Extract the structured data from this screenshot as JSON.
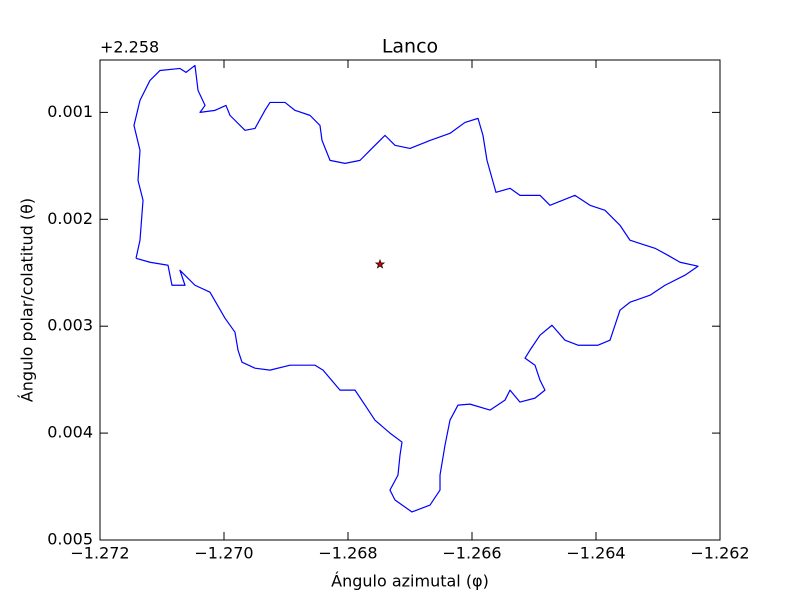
{
  "chart_data": {
    "type": "line",
    "title": "Lanco",
    "xlabel": "Ángulo azimutal (φ)",
    "ylabel": "Ángulo polar/colatitud (θ)",
    "y_offset": "+2.258",
    "xlim": [
      -1.272,
      -1.262
    ],
    "xticks": [
      {
        "value": -1.272,
        "label": "−1.272"
      },
      {
        "value": -1.27,
        "label": "−1.270"
      },
      {
        "value": -1.268,
        "label": "−1.268"
      },
      {
        "value": -1.266,
        "label": "−1.266"
      },
      {
        "value": -1.264,
        "label": "−1.264"
      },
      {
        "value": -1.262,
        "label": "−1.262"
      }
    ],
    "ylim": [
      0.005,
      0.00051
    ],
    "yticks": [
      0.001,
      0.002,
      0.003,
      0.004,
      0.005
    ],
    "series": [
      {
        "color": "#0000ff",
        "x": [
          -1.271419,
          -1.271355,
          -1.271306,
          -1.271387,
          -1.271355,
          -1.271452,
          -1.271355,
          -1.271194,
          -1.271032,
          -1.27071,
          -1.270613,
          -1.270468,
          -1.270419,
          -1.270306,
          -1.270387,
          -1.270145,
          -1.269968,
          -1.269903,
          -1.269661,
          -1.2695,
          -1.269339,
          -1.269258,
          -1.269016,
          -1.268855,
          -1.268613,
          -1.268452,
          -1.268419,
          -1.26829,
          -1.268048,
          -1.267806,
          -1.267645,
          -1.267403,
          -1.267242,
          -1.267,
          -1.266677,
          -1.266355,
          -1.266113,
          -1.265903,
          -1.265823,
          -1.265758,
          -1.265613,
          -1.265387,
          -1.265226,
          -1.264903,
          -1.264742,
          -1.264339,
          -1.264097,
          -1.263855,
          -1.263613,
          -1.263452,
          -1.263048,
          -1.262839,
          -1.262645,
          -1.262355,
          -1.262565,
          -1.262887,
          -1.263129,
          -1.263452,
          -1.263613,
          -1.263774,
          -1.263968,
          -1.26429,
          -1.2645,
          -1.26471,
          -1.264903,
          -1.265065,
          -1.265145,
          -1.264984,
          -1.264903,
          -1.264823,
          -1.264984,
          -1.265226,
          -1.265387,
          -1.265468,
          -1.26571,
          -1.266032,
          -1.266226,
          -1.266355,
          -1.266435,
          -1.266516,
          -1.266516,
          -1.266677,
          -1.266968,
          -1.267242,
          -1.267323,
          -1.267194,
          -1.267161,
          -1.267129,
          -1.267323,
          -1.267565,
          -1.267726,
          -1.267887,
          -1.268129,
          -1.268403,
          -1.268532,
          -1.268935,
          -1.269258,
          -1.2695,
          -1.26971,
          -1.269774,
          -1.269823,
          -1.269984,
          -1.270226,
          -1.270468,
          -1.27071,
          -1.270629,
          -1.270839,
          -1.270903,
          -1.271194,
          -1.271419
        ],
        "values": [
          0.002365,
          0.002196,
          0.001822,
          0.001636,
          0.001355,
          0.001122,
          0.000888,
          0.000701,
          0.000608,
          0.000589,
          0.000626,
          0.000561,
          0.000794,
          0.000935,
          0.001,
          0.000981,
          0.000935,
          0.001028,
          0.001168,
          0.00115,
          0.000981,
          0.000907,
          0.000907,
          0.000981,
          0.001028,
          0.001122,
          0.001262,
          0.001449,
          0.001477,
          0.001449,
          0.001355,
          0.001215,
          0.001308,
          0.001337,
          0.001262,
          0.001196,
          0.001094,
          0.001056,
          0.001215,
          0.001449,
          0.001748,
          0.00171,
          0.001776,
          0.001776,
          0.001869,
          0.001776,
          0.001869,
          0.001916,
          0.002056,
          0.002196,
          0.002271,
          0.002337,
          0.002402,
          0.002439,
          0.002523,
          0.002617,
          0.00271,
          0.002776,
          0.00285,
          0.003131,
          0.003178,
          0.003178,
          0.003131,
          0.002991,
          0.003084,
          0.003224,
          0.003299,
          0.003365,
          0.003505,
          0.003598,
          0.003673,
          0.00371,
          0.003598,
          0.003692,
          0.003785,
          0.003729,
          0.003738,
          0.003879,
          0.004112,
          0.004393,
          0.004533,
          0.004673,
          0.004738,
          0.004626,
          0.004533,
          0.004393,
          0.004206,
          0.004084,
          0.004,
          0.003879,
          0.003738,
          0.003598,
          0.003598,
          0.003411,
          0.003365,
          0.003365,
          0.003411,
          0.003393,
          0.003337,
          0.003224,
          0.003056,
          0.002925,
          0.002682,
          0.002617,
          0.002477,
          0.002617,
          0.002617,
          0.00243,
          0.002402,
          0.002365
        ]
      },
      {
        "color": "#cc0000",
        "marker": "star",
        "x": [
          -1.267484
        ],
        "values": [
          0.002421
        ]
      }
    ]
  }
}
